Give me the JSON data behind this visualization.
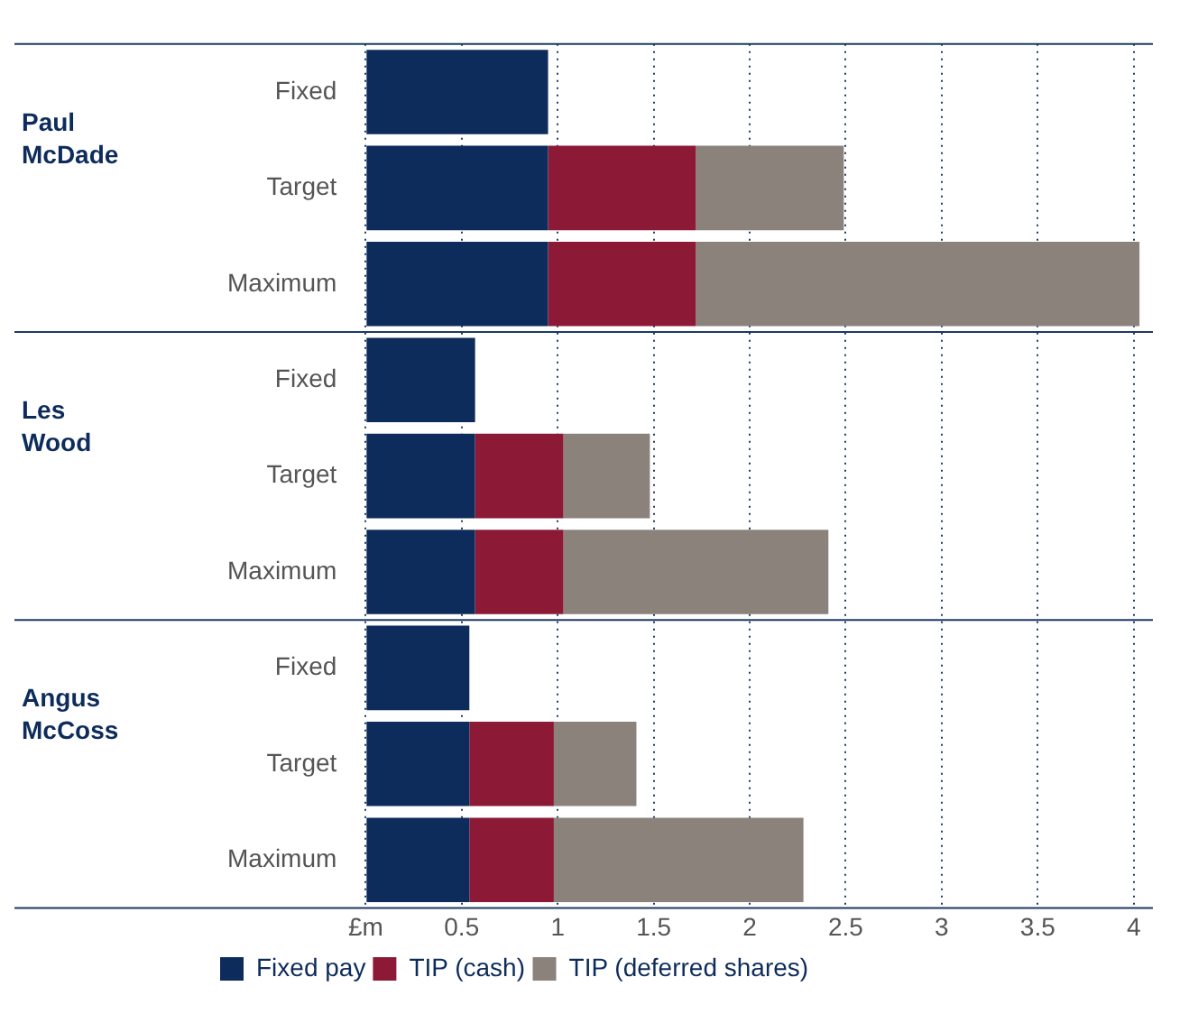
{
  "chart_data": {
    "type": "bar",
    "orientation": "horizontal",
    "stacked": true,
    "categories": [
      "Fixed",
      "Target",
      "Maximum",
      "Fixed",
      "Target",
      "Maximum",
      "Fixed",
      "Target",
      "Maximum"
    ],
    "series": [
      {
        "name": "Fixed pay",
        "color": "#0d2c5b",
        "values": [
          0.95,
          0.95,
          0.95,
          0.57,
          0.57,
          0.57,
          0.54,
          0.54,
          0.54
        ]
      },
      {
        "name": "TIP (cash)",
        "color": "#8c1a36",
        "values": [
          null,
          0.77,
          0.77,
          null,
          0.46,
          0.46,
          null,
          0.44,
          0.44
        ]
      },
      {
        "name": "TIP (deferred shares)",
        "color": "#8b827c",
        "values": [
          null,
          0.77,
          2.31,
          null,
          0.45,
          1.38,
          null,
          0.43,
          1.3
        ]
      }
    ],
    "annotations": [
      "Paul\nMcDade",
      "Les\nWood",
      "Angus\nMcCoss"
    ],
    "xlim": [
      0,
      4.1
    ],
    "xticks": [
      {
        "value": 0,
        "label": "£m"
      },
      0.5,
      1,
      1.5,
      2,
      2.5,
      3,
      3.5,
      4
    ],
    "grid": "x",
    "legend": "bottom"
  }
}
